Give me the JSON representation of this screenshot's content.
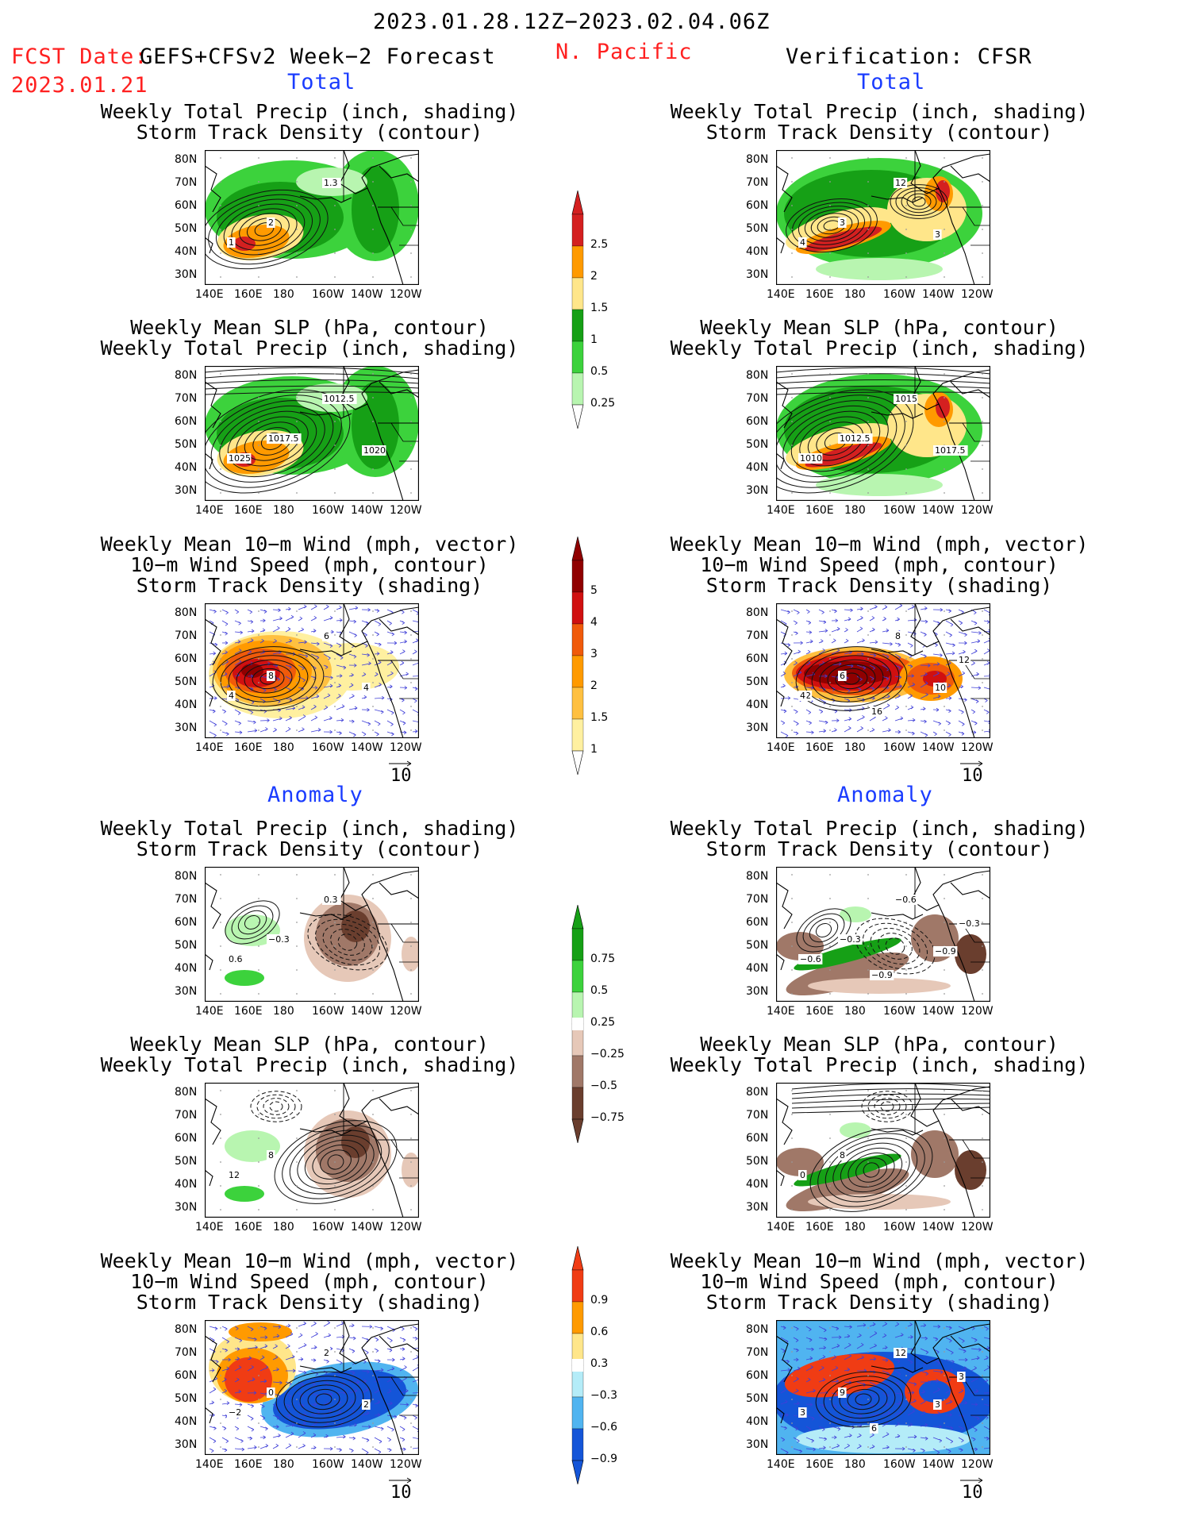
{
  "header": {
    "date_range": "2023.01.28.12Z−2023.02.04.06Z",
    "fcst_label": "FCST Date:",
    "fcst_model": "GEFS+CFSv2 Week−2 Forecast",
    "fcst_date": "2023.01.21",
    "region": "N. Pacific",
    "verification": "Verification: CFSR"
  },
  "sections": {
    "total": "Total",
    "anomaly": "Anomaly"
  },
  "titles": {
    "precip_storm": [
      "Weekly Total Precip (inch, shading)",
      "Storm Track Density (contour)"
    ],
    "slp_precip": [
      "Weekly Mean SLP (hPa, contour)",
      "Weekly Total Precip (inch, shading)"
    ],
    "wind_storm": [
      "Weekly Mean 10−m Wind (mph, vector)",
      "10−m Wind Speed (mph, contour)",
      "Storm Track Density (shading)"
    ]
  },
  "axes": {
    "lat_ticks": [
      "80N",
      "70N",
      "60N",
      "50N",
      "40N",
      "30N"
    ],
    "lon_ticks": [
      "140E",
      "160E",
      "180",
      "160W",
      "140W",
      "120W"
    ],
    "vector_ref": "10"
  },
  "contour_labels": {
    "fc_total_precip": [
      "1",
      "2",
      "1.3"
    ],
    "vf_total_precip": [
      "4",
      "3",
      "12",
      "3"
    ],
    "fc_total_slp": [
      "1025",
      "1017.5",
      "1012.5",
      "1020"
    ],
    "vf_total_slp": [
      "1010",
      "1012.5",
      "1015",
      "1017.5"
    ],
    "fc_total_wind": [
      "4",
      "8",
      "6",
      "4"
    ],
    "vf_total_wind": [
      "12",
      "6",
      "8",
      "10",
      "16",
      "12",
      "4",
      "6"
    ],
    "fc_anom_precip": [
      "0.6",
      "−0.3",
      "0.3"
    ],
    "vf_anom_precip": [
      "−0.6",
      "−0.3",
      "−0.6",
      "−0.9",
      "−0.9",
      "−0.3"
    ],
    "fc_anom_slp": [
      "12",
      "8"
    ],
    "vf_anom_slp": [
      "0",
      "8"
    ],
    "fc_anom_wind": [
      "−2",
      "0",
      "2",
      "2"
    ],
    "vf_anom_wind": [
      "3",
      "9",
      "12",
      "3",
      "6",
      "3"
    ]
  },
  "colorbars": {
    "precip_total": {
      "labels": [
        "2.5",
        "2",
        "1.5",
        "1",
        "0.5",
        "0.25"
      ],
      "colors": [
        "#d42020",
        "#ff9a00",
        "#ffe68a",
        "#16a016",
        "#3cd23c",
        "#b8f5b0"
      ]
    },
    "storm_total": {
      "labels": [
        "5",
        "4",
        "3",
        "2",
        "1.5",
        "1"
      ],
      "colors": [
        "#900000",
        "#d01010",
        "#f05a0a",
        "#ff9a00",
        "#ffc040",
        "#fff0a0"
      ]
    },
    "precip_anom": {
      "labels": [
        "0.75",
        "0.5",
        "0.25",
        "−0.25",
        "−0.5",
        "−0.75"
      ],
      "colors": [
        "#16a016",
        "#3cd23c",
        "#b8f5b0",
        "#e6c8b8",
        "#a07868",
        "#6a3e2e"
      ]
    },
    "storm_anom": {
      "labels": [
        "0.9",
        "0.6",
        "0.3",
        "−0.3",
        "−0.6",
        "−0.9"
      ],
      "colors": [
        "#f03c14",
        "#ff9a00",
        "#ffe68a",
        "#b4ecf8",
        "#50b4f0",
        "#1455d8"
      ]
    }
  },
  "chart_data": [
    {
      "type": "heatmap",
      "panel": "forecast-total-precip-storm",
      "variable": "Weekly Total Precip",
      "units": "inch",
      "levels": [
        0.25,
        0.5,
        1,
        1.5,
        2,
        2.5
      ]
    },
    {
      "type": "heatmap",
      "panel": "verification-total-precip-storm",
      "variable": "Weekly Total Precip",
      "units": "inch",
      "levels": [
        0.25,
        0.5,
        1,
        1.5,
        2,
        2.5
      ]
    },
    {
      "type": "heatmap",
      "panel": "forecast-total-slp-precip",
      "variable": "Weekly Mean SLP",
      "units": "hPa",
      "contours": [
        1012.5,
        1017.5,
        1020,
        1025
      ]
    },
    {
      "type": "heatmap",
      "panel": "verification-total-slp-precip",
      "variable": "Weekly Mean SLP",
      "units": "hPa",
      "contours": [
        1010,
        1012.5,
        1015,
        1017.5
      ]
    },
    {
      "type": "heatmap",
      "panel": "forecast-total-wind-storm",
      "variable": "Storm Track Density",
      "levels": [
        1,
        1.5,
        2,
        3,
        4,
        5
      ]
    },
    {
      "type": "heatmap",
      "panel": "verification-total-wind-storm",
      "variable": "Storm Track Density",
      "levels": [
        1,
        1.5,
        2,
        3,
        4,
        5
      ]
    },
    {
      "type": "heatmap",
      "panel": "forecast-anomaly-precip-storm",
      "variable": "Weekly Total Precip anomaly",
      "units": "inch",
      "levels": [
        -0.75,
        -0.5,
        -0.25,
        0.25,
        0.5,
        0.75
      ]
    },
    {
      "type": "heatmap",
      "panel": "verification-anomaly-precip-storm",
      "variable": "Weekly Total Precip anomaly",
      "units": "inch",
      "levels": [
        -0.75,
        -0.5,
        -0.25,
        0.25,
        0.5,
        0.75
      ]
    },
    {
      "type": "heatmap",
      "panel": "forecast-anomaly-slp-precip",
      "variable": "Weekly Mean SLP anomaly",
      "units": "hPa"
    },
    {
      "type": "heatmap",
      "panel": "verification-anomaly-slp-precip",
      "variable": "Weekly Mean SLP anomaly",
      "units": "hPa"
    },
    {
      "type": "heatmap",
      "panel": "forecast-anomaly-wind-storm",
      "variable": "Storm Track Density anomaly",
      "levels": [
        -0.9,
        -0.6,
        -0.3,
        0.3,
        0.6,
        0.9
      ]
    },
    {
      "type": "heatmap",
      "panel": "verification-anomaly-wind-storm",
      "variable": "Storm Track Density anomaly",
      "levels": [
        -0.9,
        -0.6,
        -0.3,
        0.3,
        0.6,
        0.9
      ]
    }
  ]
}
